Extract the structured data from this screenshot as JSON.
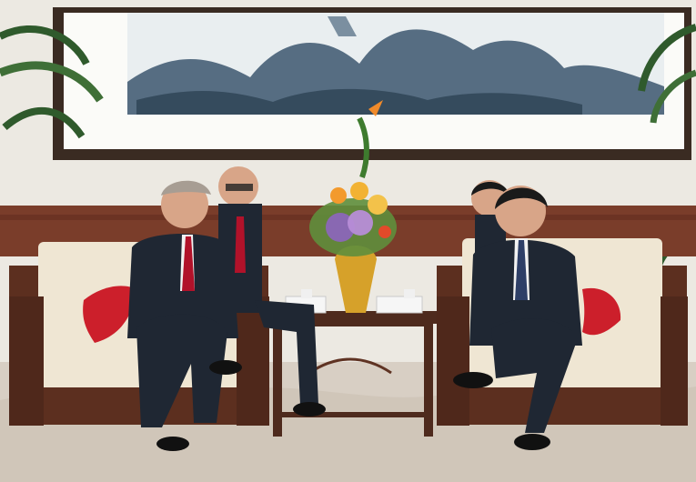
{
  "scene": {
    "description_label": "",
    "palette": {
      "wall": "#ece9e2",
      "painting_bg": "#e9eef0",
      "painting_ink": "#3c566e",
      "painting_frame": "#3a2b22",
      "paneling": "#7a3d2a",
      "wood": "#5c2f1f",
      "sofa_cushion": "#efe6d3",
      "red_pillow": "#cc1f2b",
      "carpet": "#d8cfc4",
      "suit_dark": "#1f2733",
      "shirt_white": "#f2f2f2",
      "tie_red": "#b1122a",
      "tie_blue": "#2e3f67",
      "skin": "#d8a588",
      "hair_grey": "#a79d93",
      "gold_vase": "#d6a12a"
    },
    "place_cards": [
      {
        "text": ""
      },
      {
        "text": ""
      }
    ]
  }
}
